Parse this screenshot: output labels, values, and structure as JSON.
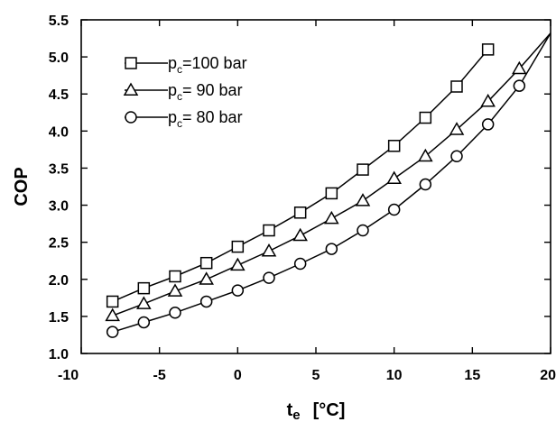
{
  "chart_data": {
    "type": "line",
    "xlabel": "t",
    "xlabel_sub": "e",
    "xlabel_unit": "[°C]",
    "ylabel": "COP",
    "xlim": [
      -10,
      20
    ],
    "ylim": [
      1.0,
      5.5
    ],
    "xticks": [
      -10,
      -5,
      0,
      5,
      10,
      15,
      20
    ],
    "yticks": [
      "1.0",
      "1.5",
      "2.0",
      "2.5",
      "3.0",
      "3.5",
      "4.0",
      "4.5",
      "5.0",
      "5.5"
    ],
    "grid": false,
    "legend_position": "top-left",
    "series": [
      {
        "name": "pc=100 bar",
        "legend_label": {
          "main": "p",
          "sub": "c",
          "rest": "=100  bar"
        },
        "marker": "square",
        "x": [
          -8,
          -6,
          -4,
          -2,
          0,
          2,
          4,
          6,
          8,
          10,
          12,
          14,
          16
        ],
        "y": [
          1.7,
          1.88,
          2.04,
          2.22,
          2.44,
          2.66,
          2.9,
          3.16,
          3.48,
          3.8,
          4.18,
          4.6,
          5.1
        ]
      },
      {
        "name": "pc= 90 bar",
        "legend_label": {
          "main": "p",
          "sub": "c",
          "rest": "=  90  bar"
        },
        "marker": "triangle",
        "x": [
          -8,
          -6,
          -4,
          -2,
          0,
          2,
          4,
          6,
          8,
          10,
          12,
          14,
          16,
          18
        ],
        "y": [
          1.51,
          1.67,
          1.84,
          2.0,
          2.19,
          2.38,
          2.59,
          2.82,
          3.06,
          3.36,
          3.66,
          4.02,
          4.4,
          4.84
        ]
      },
      {
        "name": "pc= 80 bar",
        "legend_label": {
          "main": "p",
          "sub": "c",
          "rest": "=  80  bar"
        },
        "marker": "circle",
        "x": [
          -8,
          -6,
          -4,
          -2,
          0,
          2,
          4,
          6,
          8,
          10,
          12,
          14,
          16,
          18
        ],
        "y": [
          1.29,
          1.42,
          1.55,
          1.7,
          1.85,
          2.02,
          2.21,
          2.41,
          2.66,
          2.94,
          3.28,
          3.66,
          4.09,
          4.61
        ]
      }
    ],
    "curve_endpoint": {
      "x": 20,
      "y": 5.32
    }
  }
}
